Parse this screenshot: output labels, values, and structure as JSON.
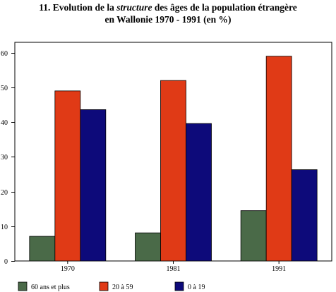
{
  "title": {
    "number": "11.",
    "line1_a": "Evolution de la",
    "line1_italic": "structure",
    "line1_b": "des âges de la population étrangère",
    "line2": "en Wallonie 1970 - 1991 (en %)"
  },
  "chart_data": {
    "type": "bar",
    "title": "11. Evolution de la structure des âges de la population étrangère en Wallonie 1970 - 1991 (en %)",
    "categories": [
      "1970",
      "1981",
      "1991"
    ],
    "series": [
      {
        "name": "60 ans et plus",
        "color": "#4a6a48",
        "values": [
          7.1,
          8.1,
          14.5
        ]
      },
      {
        "name": "20 à 59",
        "color": "#e03a16",
        "values": [
          49.0,
          52.0,
          59.0
        ]
      },
      {
        "name": "0 à 19",
        "color": "#0d0a7a",
        "values": [
          43.6,
          39.6,
          26.3
        ]
      }
    ],
    "ylim": [
      0,
      63
    ],
    "yticks": [
      0,
      10,
      20,
      30,
      40,
      50,
      60
    ],
    "grid": false,
    "legend": "bottom"
  }
}
